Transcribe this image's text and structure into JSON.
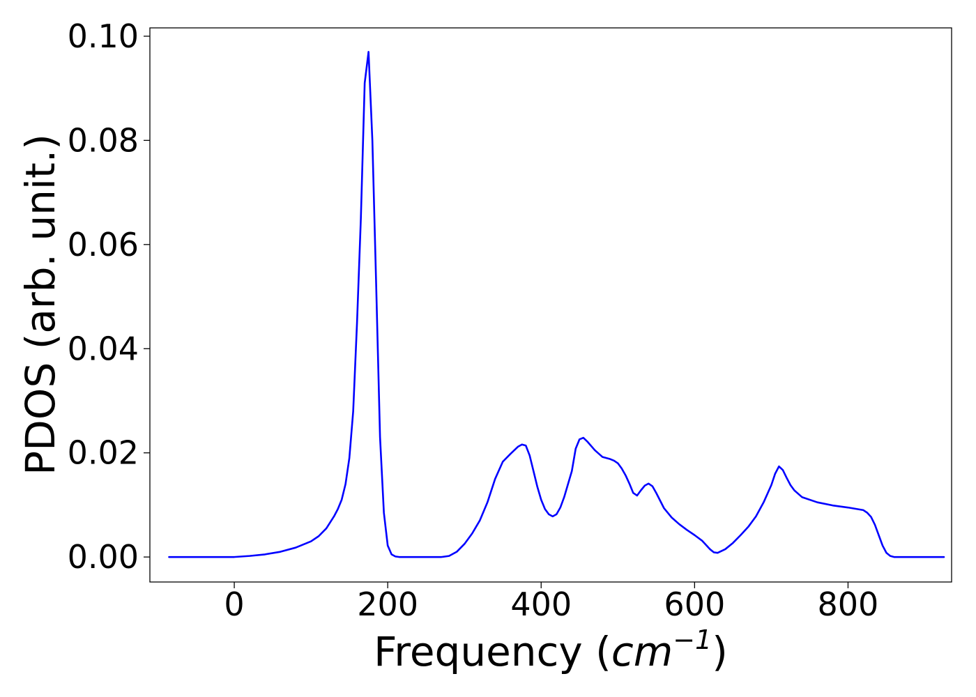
{
  "chart_data": {
    "type": "line",
    "title": "",
    "xlabel": {
      "prefix": "Frequency (",
      "symbol": "cm",
      "exponent": "−1",
      "suffix": ")"
    },
    "ylabel": "PDOS (arb. unit.)",
    "xlim": [
      -110,
      935
    ],
    "ylim": [
      -0.0048,
      0.1016
    ],
    "x_ticks": [
      {
        "value": 0,
        "label": "0"
      },
      {
        "value": 200,
        "label": "200"
      },
      {
        "value": 400,
        "label": "400"
      },
      {
        "value": 600,
        "label": "600"
      },
      {
        "value": 800,
        "label": "800"
      }
    ],
    "y_ticks": [
      {
        "value": 0.0,
        "label": "0.00"
      },
      {
        "value": 0.02,
        "label": "0.02"
      },
      {
        "value": 0.04,
        "label": "0.04"
      },
      {
        "value": 0.06,
        "label": "0.06"
      },
      {
        "value": 0.08,
        "label": "0.08"
      },
      {
        "value": 0.1,
        "label": "0.10"
      }
    ],
    "grid": false,
    "legend": "none",
    "series": [
      {
        "color": "#0000ff",
        "x": [
          -85,
          0,
          20,
          40,
          60,
          80,
          100,
          110,
          120,
          130,
          135,
          140,
          145,
          150,
          155,
          160,
          165,
          170,
          175,
          180,
          185,
          190,
          195,
          200,
          205,
          210,
          215,
          220,
          240,
          260,
          270,
          280,
          290,
          300,
          310,
          320,
          330,
          340,
          350,
          360,
          370,
          375,
          380,
          385,
          390,
          395,
          400,
          405,
          410,
          415,
          420,
          425,
          430,
          440,
          445,
          450,
          455,
          460,
          470,
          480,
          490,
          495,
          500,
          505,
          510,
          515,
          520,
          525,
          530,
          535,
          540,
          545,
          550,
          560,
          570,
          580,
          590,
          600,
          610,
          620,
          625,
          630,
          640,
          650,
          660,
          670,
          680,
          690,
          700,
          705,
          710,
          715,
          720,
          725,
          730,
          740,
          760,
          780,
          800,
          820,
          825,
          830,
          835,
          840,
          845,
          850,
          855,
          860,
          870,
          900,
          925
        ],
        "y": [
          0.0,
          0.0,
          0.0002,
          0.0005,
          0.001,
          0.0018,
          0.003,
          0.004,
          0.0055,
          0.0078,
          0.0092,
          0.011,
          0.014,
          0.019,
          0.028,
          0.045,
          0.065,
          0.091,
          0.097,
          0.08,
          0.052,
          0.023,
          0.0085,
          0.0022,
          0.0005,
          0.0001,
          0.0,
          0.0,
          0.0,
          0.0,
          0.0,
          0.0002,
          0.001,
          0.0025,
          0.0045,
          0.007,
          0.0105,
          0.015,
          0.0183,
          0.0198,
          0.0212,
          0.0216,
          0.0214,
          0.0195,
          0.0165,
          0.0135,
          0.011,
          0.0092,
          0.0082,
          0.0078,
          0.0082,
          0.0095,
          0.0115,
          0.0165,
          0.0208,
          0.0226,
          0.0229,
          0.0222,
          0.0205,
          0.0192,
          0.0188,
          0.0185,
          0.018,
          0.017,
          0.0157,
          0.0141,
          0.0123,
          0.0118,
          0.0128,
          0.0137,
          0.0141,
          0.0136,
          0.0123,
          0.0094,
          0.0076,
          0.0063,
          0.0052,
          0.0042,
          0.0031,
          0.0015,
          0.0009,
          0.0008,
          0.0015,
          0.0027,
          0.0042,
          0.0058,
          0.0078,
          0.0105,
          0.0138,
          0.016,
          0.0174,
          0.0167,
          0.0152,
          0.0138,
          0.0128,
          0.0115,
          0.0105,
          0.0099,
          0.0095,
          0.009,
          0.0085,
          0.0077,
          0.0062,
          0.0042,
          0.0022,
          0.0008,
          0.0002,
          0.0,
          0.0,
          0.0,
          0.0
        ]
      }
    ]
  }
}
